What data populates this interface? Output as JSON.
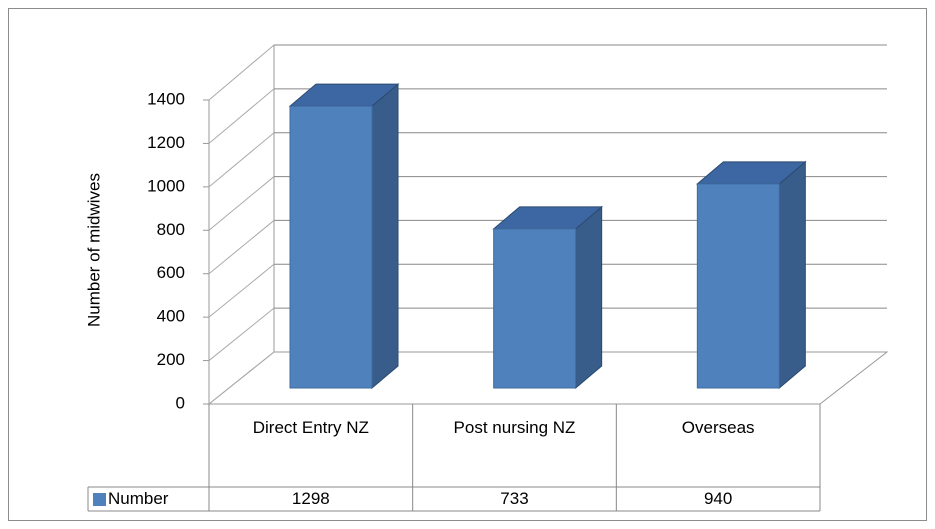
{
  "chart_data": {
    "type": "bar3d",
    "categories": [
      "Direct Entry NZ",
      "Post nursing NZ",
      "Overseas"
    ],
    "series": [
      {
        "name": "Number",
        "color": "#4f81bd",
        "values": [
          1298,
          733,
          940
        ]
      }
    ],
    "y_label": "Number of midwives",
    "ylim": [
      0,
      1400
    ],
    "yticks": [
      0,
      200,
      400,
      600,
      800,
      1000,
      1200,
      1400
    ],
    "grid": true,
    "data_table": true
  }
}
